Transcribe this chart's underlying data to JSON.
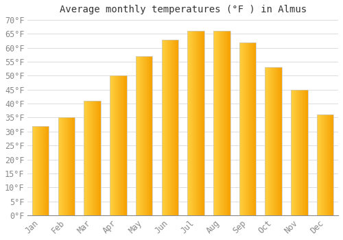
{
  "title": "Average monthly temperatures (°F ) in Almus",
  "months": [
    "Jan",
    "Feb",
    "Mar",
    "Apr",
    "May",
    "Jun",
    "Jul",
    "Aug",
    "Sep",
    "Oct",
    "Nov",
    "Dec"
  ],
  "values": [
    32,
    35,
    41,
    50,
    57,
    63,
    66,
    66,
    62,
    53,
    45,
    36
  ],
  "bar_color_left": "#FFD040",
  "bar_color_right": "#F5A000",
  "bar_edge_color": "#C8C8C8",
  "background_color": "#FFFFFF",
  "ylim": [
    0,
    70
  ],
  "yticks": [
    0,
    5,
    10,
    15,
    20,
    25,
    30,
    35,
    40,
    45,
    50,
    55,
    60,
    65,
    70
  ],
  "title_fontsize": 10,
  "tick_fontsize": 8.5,
  "grid_color": "#DDDDDD",
  "tick_color": "#888888",
  "title_color": "#333333"
}
